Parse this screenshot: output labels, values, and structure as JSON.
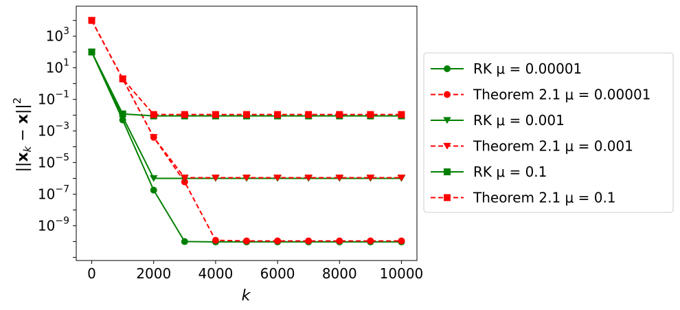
{
  "chart_data": {
    "type": "line",
    "xlabel": "k",
    "ylabel": "||x_k - x||^2",
    "xlim": [
      -500,
      10500
    ],
    "ylim_log10": [
      -11.2,
      4.9
    ],
    "yscale": "log",
    "x_ticks": [
      "0",
      "2000",
      "4000",
      "6000",
      "8000",
      "10000"
    ],
    "y_ticks": [
      {
        "base": "10",
        "exp": "3"
      },
      {
        "base": "10",
        "exp": "1"
      },
      {
        "base": "10",
        "exp": "−1"
      },
      {
        "base": "10",
        "exp": "−3"
      },
      {
        "base": "10",
        "exp": "−5"
      },
      {
        "base": "10",
        "exp": "−7"
      },
      {
        "base": "10",
        "exp": "−9"
      }
    ],
    "legend_position": "right, outside plot",
    "grid": false,
    "series": [
      {
        "name": "RK μ = 0.00001",
        "color": "#008000",
        "style": "solid",
        "marker": "circle",
        "x": [
          0,
          1000,
          2000,
          3000,
          4000,
          5000,
          6000,
          7000,
          8000,
          9000,
          10000
        ],
        "y": [
          100,
          0.005,
          1.8e-07,
          1e-10,
          9.5e-11,
          9.5e-11,
          9.5e-11,
          9.5e-11,
          9.5e-11,
          9.5e-11,
          9.5e-11
        ]
      },
      {
        "name": "Theorem 2.1 μ = 0.00001",
        "color": "#ff0000",
        "style": "dashed",
        "marker": "circle",
        "x": [
          0,
          1000,
          2000,
          3000,
          4000,
          5000,
          6000,
          7000,
          8000,
          9000,
          10000
        ],
        "y": [
          10000,
          2,
          0.0004,
          6e-07,
          1.2e-10,
          1.1e-10,
          1.1e-10,
          1.1e-10,
          1.1e-10,
          1.1e-10,
          1.1e-10
        ]
      },
      {
        "name": "RK μ = 0.001",
        "color": "#008000",
        "style": "solid",
        "marker": "triangle-down",
        "x": [
          0,
          1000,
          2000,
          3000,
          4000,
          5000,
          6000,
          7000,
          8000,
          9000,
          10000
        ],
        "y": [
          100,
          0.008,
          1e-06,
          1e-06,
          1e-06,
          1e-06,
          1e-06,
          1e-06,
          1e-06,
          1e-06,
          1e-06
        ]
      },
      {
        "name": "Theorem 2.1 μ = 0.001",
        "color": "#ff0000",
        "style": "dashed",
        "marker": "triangle-down",
        "x": [
          0,
          1000,
          2000,
          3000,
          4000,
          5000,
          6000,
          7000,
          8000,
          9000,
          10000
        ],
        "y": [
          10000,
          2,
          0.0004,
          1.1e-06,
          1.1e-06,
          1.1e-06,
          1.1e-06,
          1.1e-06,
          1.1e-06,
          1.1e-06,
          1.1e-06
        ]
      },
      {
        "name": "RK μ = 0.1",
        "color": "#008000",
        "style": "solid",
        "marker": "square",
        "x": [
          0,
          1000,
          2000,
          3000,
          4000,
          5000,
          6000,
          7000,
          8000,
          9000,
          10000
        ],
        "y": [
          100,
          0.012,
          0.009,
          0.009,
          0.009,
          0.009,
          0.009,
          0.009,
          0.009,
          0.009,
          0.009
        ]
      },
      {
        "name": "Theorem 2.1 μ = 0.1",
        "color": "#ff0000",
        "style": "dashed",
        "marker": "square",
        "x": [
          0,
          1000,
          2000,
          3000,
          4000,
          5000,
          6000,
          7000,
          8000,
          9000,
          10000
        ],
        "y": [
          10000,
          2,
          0.011,
          0.011,
          0.011,
          0.011,
          0.011,
          0.011,
          0.011,
          0.011,
          0.011
        ]
      }
    ]
  }
}
